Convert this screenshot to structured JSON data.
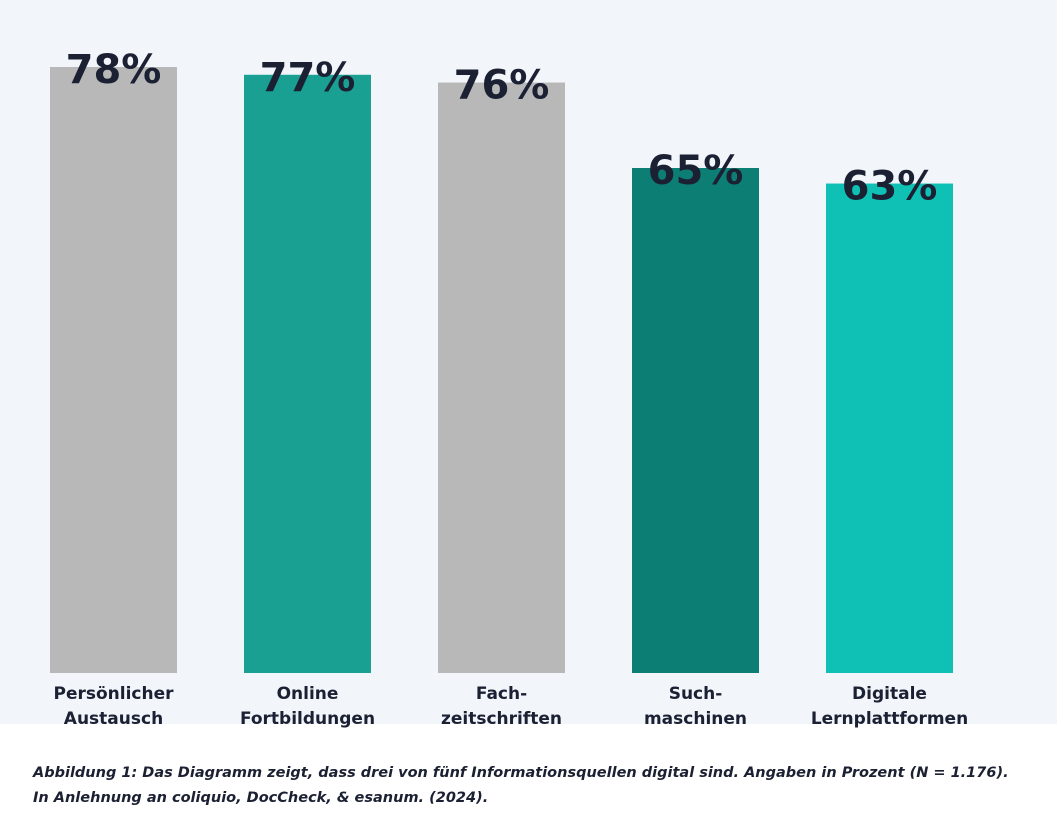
{
  "chart_data": {
    "type": "bar",
    "categories": [
      "Persönlicher\nAustausch",
      "Online\nFortbildungen",
      "Fach-\nzeitschriften",
      "Such-\nmaschinen",
      "Digitale\nLernplattformen"
    ],
    "values": [
      78,
      77,
      76,
      65,
      63
    ],
    "value_labels": [
      "78%",
      "77%",
      "76%",
      "65%",
      "63%"
    ],
    "colors": [
      "#b8b8b8",
      "#19a093",
      "#b8b8b8",
      "#0d7e73",
      "#0fc1b5"
    ],
    "caption": [
      "Abbildung 1: Das Diagramm zeigt, dass drei von fünf Informationsquellen digital sind. Angaben in Prozent (N = 1.176).",
      "In Anlehnung an coliquio, DocCheck, & esanum. (2024)."
    ]
  }
}
